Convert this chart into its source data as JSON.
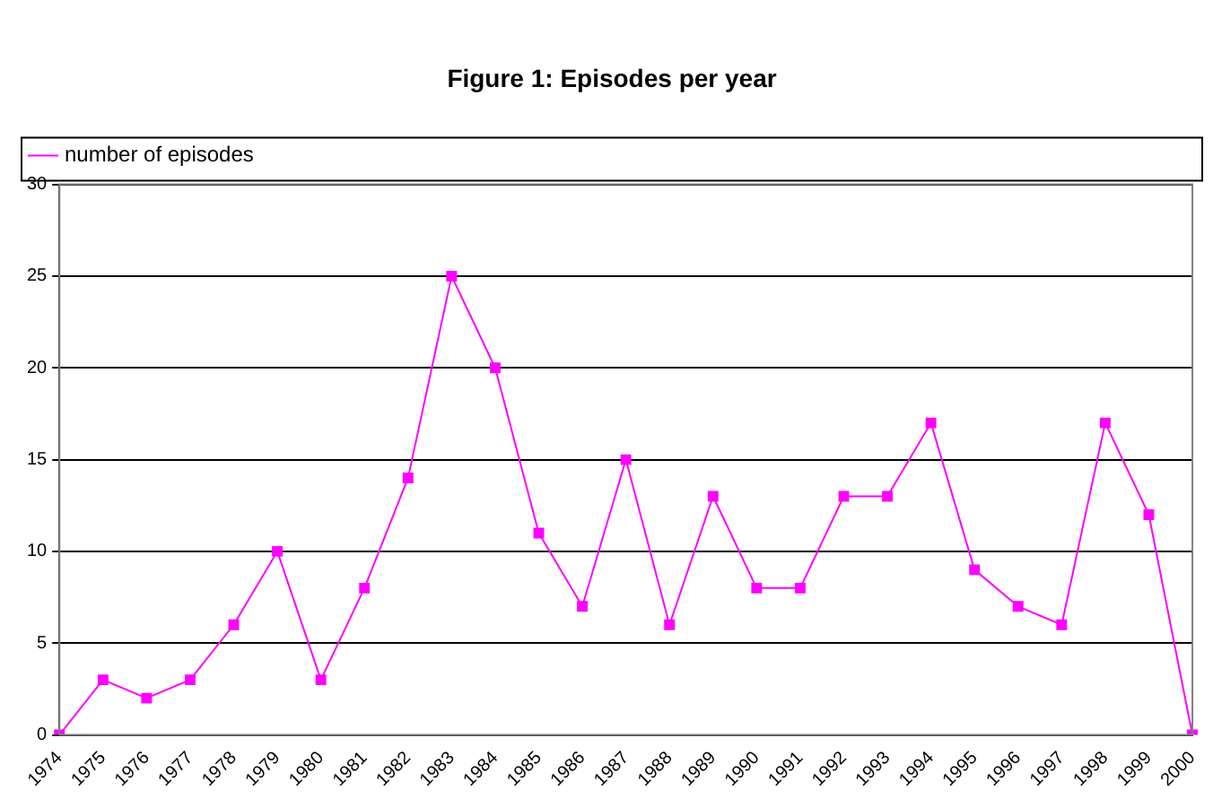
{
  "chart_data": {
    "type": "line",
    "title": "Figure 1: Episodes per year",
    "categories": [
      "1974",
      "1975",
      "1976",
      "1977",
      "1978",
      "1979",
      "1980",
      "1981",
      "1982",
      "1983",
      "1984",
      "1985",
      "1986",
      "1987",
      "1988",
      "1989",
      "1990",
      "1991",
      "1992",
      "1993",
      "1994",
      "1995",
      "1996",
      "1997",
      "1998",
      "1999",
      "2000"
    ],
    "series": [
      {
        "name": "number of episodes",
        "color": "#ff00ff",
        "values": [
          0,
          3,
          2,
          3,
          6,
          10,
          3,
          8,
          14,
          25,
          20,
          11,
          7,
          15,
          6,
          13,
          8,
          8,
          13,
          13,
          17,
          9,
          7,
          6,
          17,
          12,
          0
        ]
      }
    ],
    "ylim": [
      0,
      30
    ],
    "yticks": [
      0,
      5,
      10,
      15,
      20,
      25,
      30
    ],
    "grid": "y",
    "legend": "top left",
    "marker": "square",
    "line_style": "solid"
  }
}
